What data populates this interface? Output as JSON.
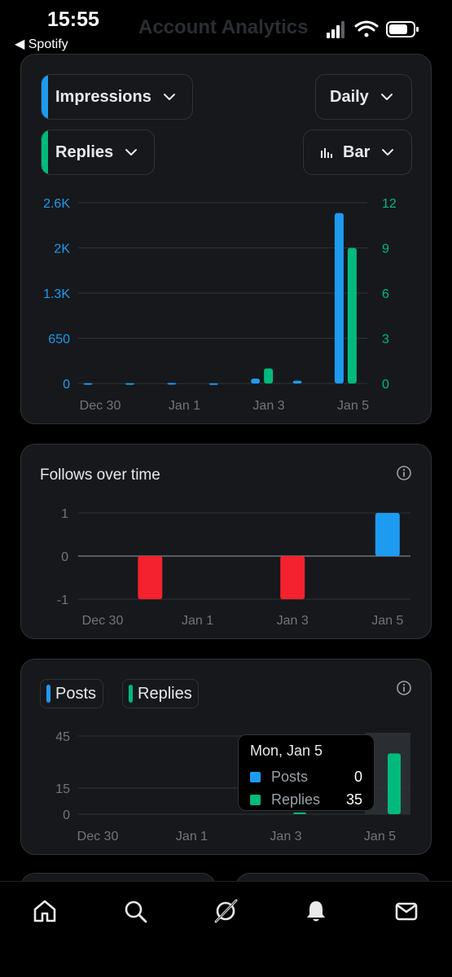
{
  "status_bar": {
    "time": "15:55",
    "back_app": "◀ Spotify",
    "faded_title": "Account Analytics",
    "icons": [
      "signal-icon",
      "wifi-icon",
      "battery-icon"
    ]
  },
  "colors": {
    "blue": "#1d9bf0",
    "green": "#00ba7c",
    "red": "#f4212e",
    "muted": "#71767b"
  },
  "impressions_card": {
    "metric1_label": "Impressions",
    "metric2_label": "Replies",
    "period_label": "Daily",
    "chart_type_label": "Bar"
  },
  "follows_card": {
    "title": "Follows over time"
  },
  "posts_card": {
    "legend_posts": "Posts",
    "legend_replies": "Replies",
    "tooltip": {
      "title": "Mon, Jan 5",
      "rows": [
        {
          "label": "Posts",
          "value": "0"
        },
        {
          "label": "Replies",
          "value": "35"
        }
      ]
    }
  },
  "bottom_nav": [
    "home-icon",
    "search-icon",
    "grok-icon",
    "notifications-icon",
    "messages-icon"
  ],
  "chart_data": [
    {
      "type": "bar",
      "x_tick_labels": [
        "Dec 30",
        "Jan 1",
        "Jan 3",
        "Jan 5"
      ],
      "categories": [
        "Dec 29",
        "Dec 30",
        "Dec 31",
        "Jan 1",
        "Jan 2",
        "Jan 3",
        "Jan 4",
        "Jan 5"
      ],
      "series": [
        {
          "name": "Impressions",
          "axis": "left",
          "values": [
            5,
            5,
            8,
            3,
            70,
            40,
            2450,
            0
          ]
        },
        {
          "name": "Replies",
          "axis": "right",
          "values": [
            0,
            0,
            0,
            0,
            1,
            0,
            9,
            0
          ]
        }
      ],
      "left_ticks": [
        "0",
        "650",
        "1.3K",
        "2K",
        "2.6K"
      ],
      "left_ylim": [
        0,
        2600
      ],
      "right_ticks": [
        "0",
        "3",
        "6",
        "9",
        "12"
      ],
      "right_ylim": [
        0,
        12
      ],
      "grid": true
    },
    {
      "type": "bar",
      "title": "Follows over time",
      "x_tick_labels": [
        "Dec 30",
        "Jan 1",
        "Jan 3",
        "Jan 5"
      ],
      "categories": [
        "Dec 30",
        "Dec 31",
        "Jan 1",
        "Jan 2",
        "Jan 3",
        "Jan 4",
        "Jan 5"
      ],
      "values": [
        0,
        -1,
        0,
        0,
        -1,
        0,
        1
      ],
      "y_ticks": [
        "-1",
        "0",
        "1"
      ],
      "ylim": [
        -1,
        1
      ],
      "grid": true
    },
    {
      "type": "bar",
      "x_tick_labels": [
        "Dec 30",
        "Jan 1",
        "Jan 3",
        "Jan 5"
      ],
      "categories": [
        "Dec 30",
        "Dec 31",
        "Jan 1",
        "Jan 2",
        "Jan 3",
        "Jan 4",
        "Jan 5"
      ],
      "series": [
        {
          "name": "Posts",
          "values": [
            0,
            0,
            0,
            0,
            0,
            0,
            0
          ]
        },
        {
          "name": "Replies",
          "values": [
            0,
            0,
            0,
            0,
            1,
            0,
            35
          ]
        }
      ],
      "y_ticks": [
        "0",
        "15",
        "45"
      ],
      "ylim": [
        0,
        45
      ],
      "grid": true
    }
  ]
}
